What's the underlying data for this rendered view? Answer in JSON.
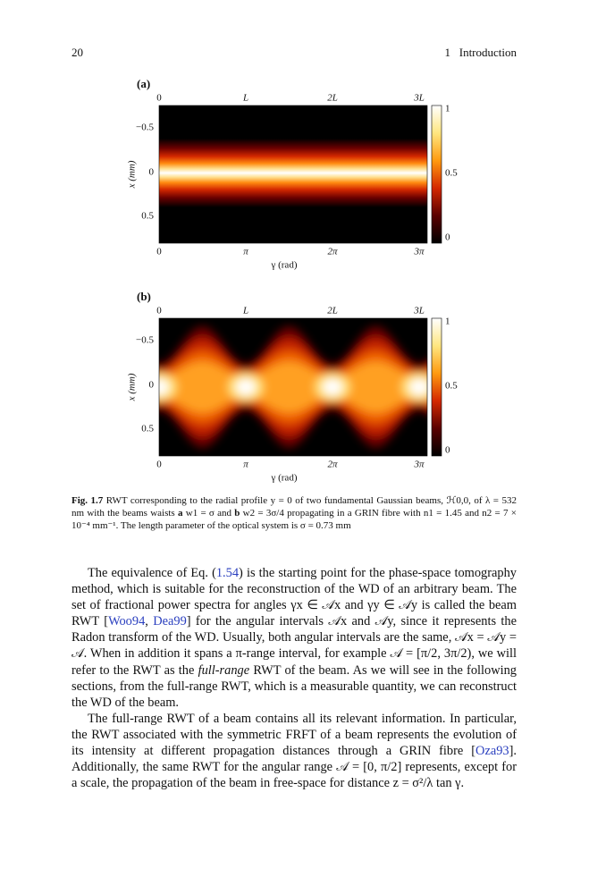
{
  "header": {
    "page": "20",
    "chapter": "1   Introduction"
  },
  "figure": {
    "panels": [
      {
        "label": "(a)",
        "top_ticks": [
          "0",
          "L",
          "2L",
          "3L"
        ],
        "bottom_ticks": [
          "0",
          "π",
          "2π",
          "3π"
        ],
        "x_label": "γ (rad)",
        "y_label": "x (mm)",
        "y_ticks": [
          "−0.5",
          "0",
          "0.5"
        ],
        "colorbar_ticks": [
          "1",
          "0.5",
          "0"
        ]
      },
      {
        "label": "(b)",
        "top_ticks": [
          "0",
          "L",
          "2L",
          "3L"
        ],
        "bottom_ticks": [
          "0",
          "π",
          "2π",
          "3π"
        ],
        "x_label": "γ (rad)",
        "y_label": "x (mm)",
        "y_ticks": [
          "−0.5",
          "0",
          "0.5"
        ],
        "colorbar_ticks": [
          "1",
          "0.5",
          "0"
        ]
      }
    ],
    "caption": [
      "Fig. 1.7",
      " RWT corresponding to the radial profile y = 0 of two fundamental Gaussian beams, ℋ0,0, of λ = 532 nm with the beams waists ",
      "a",
      " w1 = σ and ",
      "b",
      " w2 = 3σ/4 propagating in a GRIN fibre with n1 = 1.45 and n2 = 7 × 10⁻⁴ mm⁻¹. The length parameter of the optical system is σ = 0.73 mm"
    ]
  },
  "paragraphs": [
    [
      "The equivalence of Eq. (",
      "1.54",
      ") is the starting point for the phase-space tomography method, which is suitable for the reconstruction of the WD of an arbitrary beam. The set of fractional power spectra for angles γx ∈ 𝒜x and γy ∈ 𝒜y is called the beam RWT [",
      "Woo94",
      ", ",
      "Dea99",
      "] for the angular intervals 𝒜x and 𝒜y, since it represents the Radon transform of the WD. Usually, both angular intervals are the same, 𝒜x = 𝒜y = 𝒜. When in addition it spans a π-range interval, for example 𝒜 = [π/2, 3π/2), we will refer to the RWT as the ",
      "full-range",
      " RWT of the beam. As we will see in the following sections, from the full-range RWT, which is a measurable quantity, we can reconstruct the WD of the beam."
    ],
    [
      "The full-range RWT of a beam contains all its relevant information. In particular, the RWT associated with the symmetric FRFT of a beam represents the evolution of its intensity at different propagation distances through a GRIN fibre [",
      "Oza93",
      "]. Additionally, the same RWT for the angular range 𝒜 = [0, π/2] represents, except for a scale, the propagation of the beam in free-space for distance z = σ²/λ tan γ."
    ]
  ]
}
